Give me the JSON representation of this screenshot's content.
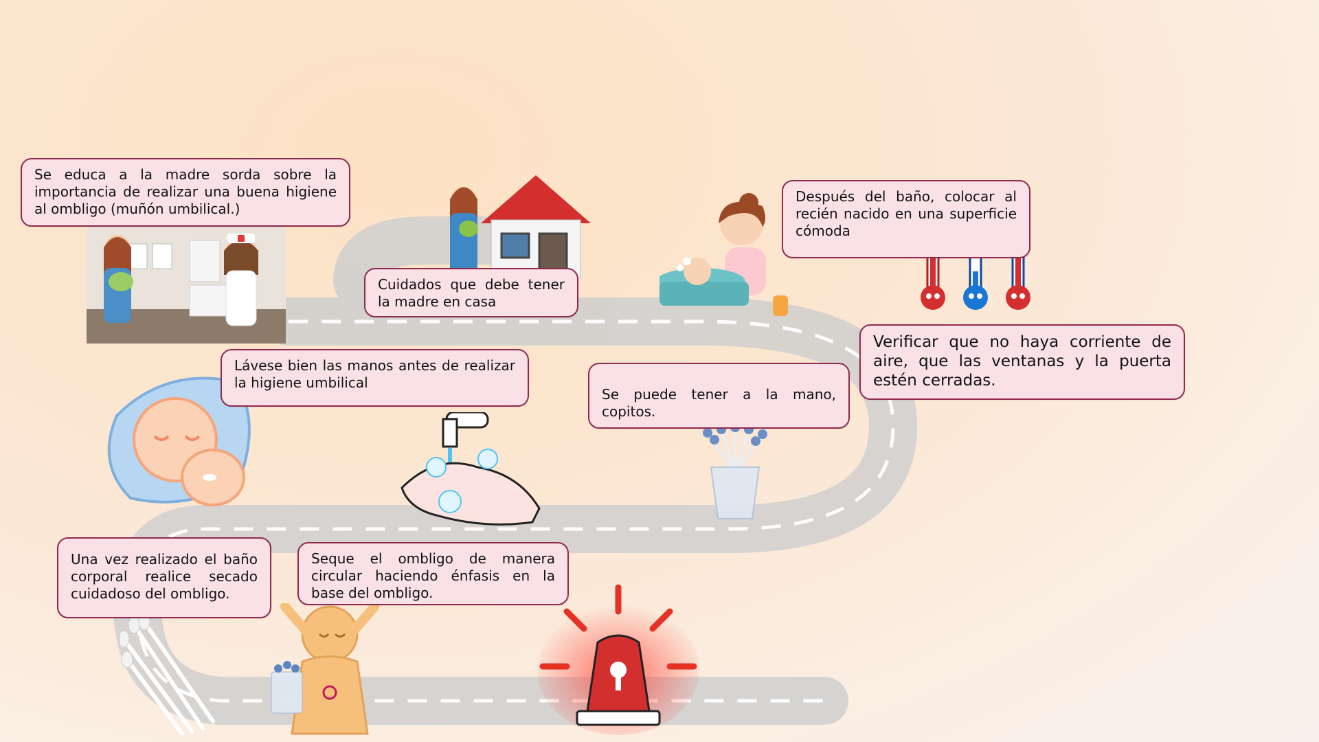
{
  "cards": {
    "educa": "Se educa a la madre sorda sobre la importancia de realizar una buena higiene al ombligo (muñón umbilical.)",
    "cuidados_casa": "Cuidados que debe tener  la madre en casa",
    "despues_bano": "Después del  baño, colocar al recién nacido en una superficie cómoda",
    "verificar": "Verificar que  no haya  corriente de aire, que las ventanas y  la puerta estén cerradas.",
    "lavese": "Lávese bien las manos antes de realizar la higiene umbilical",
    "copitos": "Se puede tener a la mano, copitos.",
    "secado": "Una vez realizado el baño corporal realice secado cuidadoso del ombligo.",
    "seque": "Seque el   ombligo de manera circular haciendo énfasis en la base del ombligo."
  },
  "colors": {
    "card_bg": "#f9e1e7",
    "card_border": "#8e2a4e",
    "road": "#c9c9c9",
    "alarm": "#e53222"
  },
  "icons": [
    "mother-nurse-clinic-illustration",
    "house-with-mother-icon",
    "mother-bathing-baby-illustration",
    "thermometer-icons",
    "sleeping-baby-icon",
    "hand-washing-icon",
    "cotton-swabs-cup-icon",
    "cotton-swabs-icon",
    "baby-umbilical-icon",
    "alarm-siren-icon"
  ]
}
